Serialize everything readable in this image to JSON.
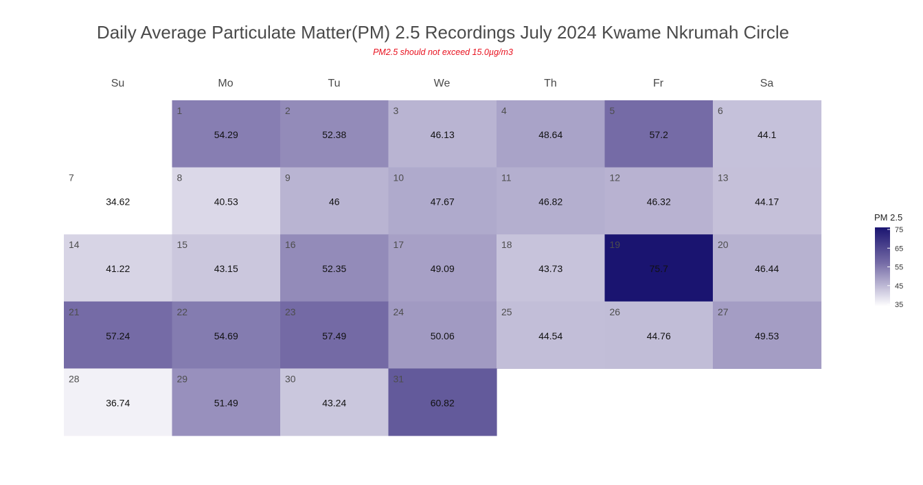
{
  "title": "Daily Average Particulate Matter(PM) 2.5 Recordings July 2024 Kwame Nkrumah Circle",
  "subtitle": "PM2.5 should not exceed 15.0µg/m3",
  "chart_data": {
    "type": "heatmap",
    "title": "Daily Average Particulate Matter(PM) 2.5 Recordings July 2024 Kwame Nkrumah Circle",
    "subtitle": "PM2.5 should not exceed 15.0µg/m3",
    "weekdays": [
      "Su",
      "Mo",
      "Tu",
      "We",
      "Th",
      "Fr",
      "Sa"
    ],
    "first_weekday_index": 1,
    "days": [
      1,
      2,
      3,
      4,
      5,
      6,
      7,
      8,
      9,
      10,
      11,
      12,
      13,
      14,
      15,
      16,
      17,
      18,
      19,
      20,
      21,
      22,
      23,
      24,
      25,
      26,
      27,
      28,
      29,
      30,
      31
    ],
    "day_labels": [
      "1",
      "2",
      "3",
      "4",
      "5",
      "6",
      "7",
      "8",
      "9",
      "10",
      "11",
      "12",
      "13",
      "14",
      "15",
      "16",
      "17",
      "18",
      "19",
      "20",
      "21",
      "22",
      "23",
      "24",
      "25",
      "26",
      "27",
      "28",
      "29",
      "30",
      "31"
    ],
    "value_labels": [
      "54.29",
      "52.38",
      "46.13",
      "48.64",
      "57.2",
      "44.1",
      "34.62",
      "40.53",
      "46",
      "47.67",
      "46.82",
      "46.32",
      "44.17",
      "41.22",
      "43.15",
      "52.35",
      "49.09",
      "43.73",
      "75.7",
      "46.44",
      "57.24",
      "54.69",
      "57.49",
      "50.06",
      "44.54",
      "44.76",
      "49.53",
      "36.74",
      "51.49",
      "43.24",
      "60.82"
    ],
    "values": [
      54.29,
      52.38,
      46.13,
      48.64,
      57.2,
      44.1,
      34.62,
      40.53,
      46,
      47.67,
      46.82,
      46.32,
      44.17,
      41.22,
      43.15,
      52.35,
      49.09,
      43.73,
      75.7,
      46.44,
      57.24,
      54.69,
      57.49,
      50.06,
      44.54,
      44.76,
      49.53,
      36.74,
      51.49,
      43.24,
      60.82
    ],
    "colorscale": {
      "title": "PM 2.5",
      "min": 34.62,
      "max": 75.7,
      "ticks": [
        35,
        45,
        55,
        65,
        75
      ],
      "tick_labels": [
        "35",
        "45",
        "55",
        "65",
        "75"
      ],
      "low_color": "#ffffff",
      "mid_color": "#756ba6",
      "high_color": "#1a1470"
    },
    "legend_position": "right"
  }
}
